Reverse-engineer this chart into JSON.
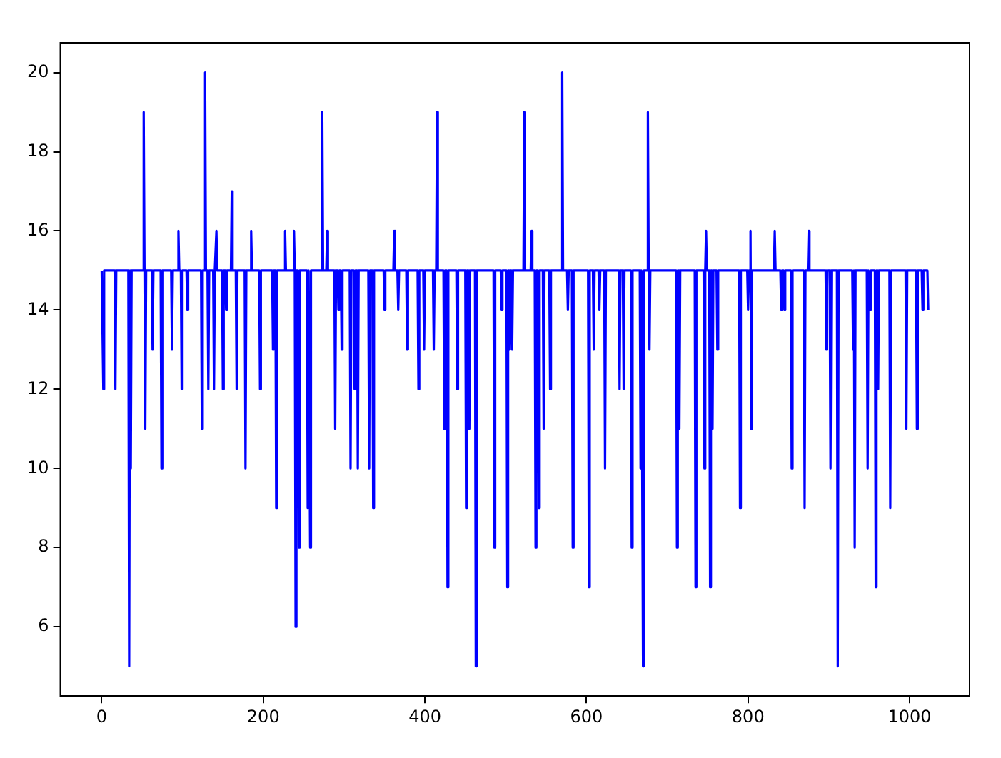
{
  "chart_data": {
    "type": "line",
    "x": [
      0,
      1,
      2,
      3,
      16,
      17,
      18,
      33,
      34,
      35,
      36,
      37,
      51,
      52,
      53,
      54,
      55,
      62,
      63,
      64,
      73,
      74,
      75,
      86,
      87,
      88,
      94,
      95,
      96,
      98,
      99,
      100,
      105,
      106,
      107,
      123,
      124,
      125,
      127,
      128,
      129,
      131,
      132,
      133,
      138,
      139,
      140,
      141,
      142,
      143,
      149,
      150,
      151,
      153,
      154,
      155,
      160,
      161,
      162,
      166,
      167,
      168,
      177,
      178,
      179,
      184,
      185,
      186,
      195,
      196,
      197,
      211,
      212,
      213,
      215,
      216,
      217,
      226,
      227,
      228,
      237,
      238,
      239,
      240,
      241,
      243,
      244,
      245,
      254,
      255,
      256,
      257,
      258,
      259,
      272,
      273,
      274,
      278,
      279,
      280,
      288,
      289,
      290,
      292,
      293,
      294,
      296,
      297,
      298,
      307,
      308,
      309,
      312,
      313,
      314,
      316,
      317,
      318,
      330,
      331,
      332,
      335,
      336,
      337,
      349,
      350,
      351,
      361,
      362,
      363,
      366,
      367,
      368,
      377,
      378,
      379,
      391,
      392,
      393,
      398,
      399,
      400,
      410,
      411,
      412,
      414,
      415,
      416,
      423,
      424,
      425,
      427,
      428,
      429,
      439,
      440,
      441,
      450,
      451,
      452,
      454,
      455,
      456,
      462,
      463,
      464,
      485,
      486,
      487,
      494,
      495,
      496,
      501,
      502,
      503,
      504,
      505,
      506,
      507,
      508,
      509,
      522,
      523,
      524,
      531,
      532,
      533,
      536,
      537,
      538,
      540,
      541,
      542,
      546,
      547,
      548,
      554,
      555,
      556,
      569,
      570,
      571,
      576,
      577,
      578,
      582,
      583,
      584,
      602,
      603,
      604,
      608,
      609,
      610,
      615,
      616,
      617,
      622,
      623,
      624,
      640,
      641,
      642,
      645,
      646,
      647,
      655,
      656,
      657,
      666,
      667,
      668,
      669,
      670,
      671,
      675,
      676,
      677,
      678,
      679,
      711,
      712,
      713,
      714,
      715,
      716,
      734,
      735,
      736,
      745,
      746,
      747,
      748,
      749,
      752,
      753,
      754,
      755,
      756,
      757,
      761,
      762,
      763,
      789,
      790,
      791,
      799,
      800,
      801,
      802,
      803,
      804,
      805,
      832,
      833,
      834,
      840,
      841,
      842,
      844,
      845,
      846,
      853,
      854,
      855,
      869,
      870,
      871,
      874,
      875,
      876,
      896,
      897,
      898,
      901,
      902,
      903,
      910,
      911,
      912,
      929,
      930,
      931,
      932,
      933,
      947,
      948,
      949,
      950,
      951,
      952,
      957,
      958,
      959,
      960,
      961,
      962,
      975,
      976,
      977,
      995,
      996,
      997,
      1008,
      1009,
      1010,
      1015,
      1016,
      1017,
      1022,
      1023
    ],
    "series": [
      {
        "color": "#0000ff",
        "values": [
          15,
          15,
          12,
          15,
          15,
          12,
          15,
          15,
          5,
          15,
          10,
          15,
          15,
          19,
          15,
          11,
          15,
          15,
          13,
          15,
          15,
          10,
          15,
          15,
          13,
          15,
          15,
          16,
          15,
          15,
          12,
          15,
          15,
          14,
          15,
          15,
          11,
          15,
          15,
          20,
          15,
          15,
          12,
          15,
          15,
          12,
          15,
          15,
          16,
          15,
          15,
          12,
          15,
          15,
          14,
          15,
          15,
          17,
          15,
          15,
          12,
          15,
          15,
          10,
          15,
          15,
          16,
          15,
          15,
          12,
          15,
          15,
          13,
          15,
          15,
          9,
          15,
          15,
          16,
          15,
          15,
          16,
          15,
          6,
          15,
          15,
          8,
          15,
          15,
          9,
          15,
          15,
          8,
          15,
          15,
          19,
          15,
          15,
          16,
          15,
          15,
          11,
          15,
          15,
          14,
          15,
          15,
          13,
          15,
          15,
          10,
          15,
          15,
          12,
          15,
          15,
          10,
          15,
          15,
          10,
          15,
          15,
          9,
          15,
          15,
          14,
          15,
          15,
          16,
          15,
          15,
          14,
          15,
          15,
          13,
          15,
          15,
          12,
          15,
          15,
          13,
          15,
          15,
          13,
          15,
          15,
          19,
          15,
          15,
          11,
          15,
          15,
          7,
          15,
          15,
          12,
          15,
          15,
          9,
          15,
          15,
          11,
          15,
          15,
          5,
          15,
          15,
          8,
          15,
          15,
          14,
          15,
          15,
          7,
          15,
          15,
          13,
          15,
          15,
          13,
          15,
          15,
          19,
          15,
          15,
          16,
          15,
          15,
          8,
          15,
          15,
          9,
          15,
          15,
          11,
          15,
          15,
          12,
          15,
          15,
          20,
          15,
          15,
          14,
          15,
          15,
          8,
          15,
          15,
          7,
          15,
          15,
          13,
          15,
          15,
          14,
          15,
          15,
          10,
          15,
          15,
          12,
          15,
          15,
          12,
          15,
          15,
          8,
          15,
          15,
          10,
          15,
          15,
          5,
          15,
          15,
          19,
          15,
          13,
          15,
          15,
          8,
          15,
          15,
          11,
          15,
          15,
          7,
          15,
          15,
          10,
          15,
          16,
          15,
          15,
          7,
          15,
          15,
          11,
          15,
          15,
          13,
          15,
          15,
          9,
          15,
          15,
          14,
          15,
          15,
          16,
          11,
          15,
          15,
          16,
          15,
          15,
          14,
          15,
          15,
          14,
          15,
          15,
          10,
          15,
          15,
          9,
          15,
          15,
          16,
          15,
          15,
          13,
          15,
          15,
          10,
          15,
          15,
          5,
          15,
          15,
          13,
          15,
          8,
          15,
          15,
          10,
          15,
          15,
          14,
          15,
          15,
          7,
          15,
          15,
          12,
          15,
          15,
          9,
          15,
          15,
          11,
          15,
          15,
          11,
          15,
          15,
          14,
          15,
          15,
          14
        ]
      }
    ],
    "xlim": [
      -51.15,
      1074.15
    ],
    "ylim": [
      4.25,
      20.75
    ],
    "xticks": [
      0,
      200,
      400,
      600,
      800,
      1000
    ],
    "yticks": [
      6,
      8,
      10,
      12,
      14,
      16,
      18,
      20
    ]
  }
}
